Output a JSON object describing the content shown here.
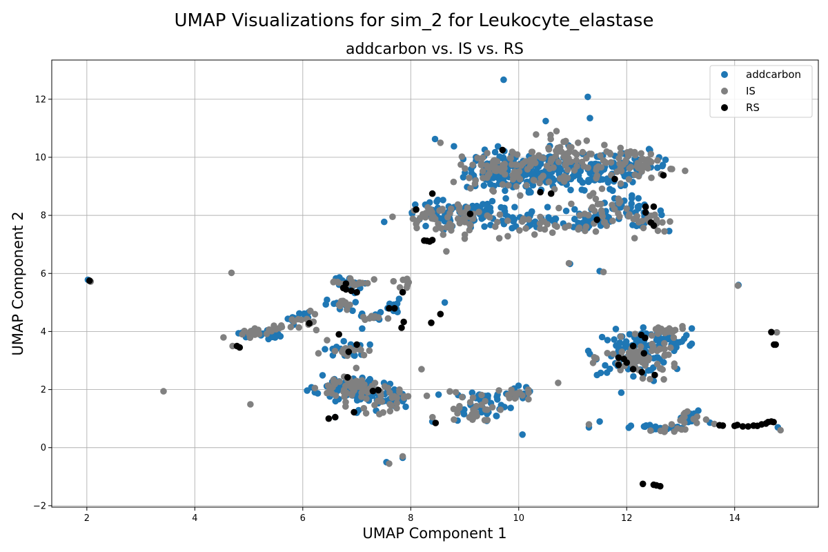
{
  "chart_data": {
    "type": "scatter",
    "suptitle": "UMAP Visualizations for sim_2 for Leukocyte_elastase",
    "title": "addcarbon vs. IS vs. RS",
    "xlabel": "UMAP Component 1",
    "ylabel": "UMAP Component 2",
    "xlim": [
      1.35,
      15.55
    ],
    "ylim": [
      -2.05,
      13.35
    ],
    "xticks": [
      2,
      4,
      6,
      8,
      10,
      12,
      14
    ],
    "yticks": [
      -2,
      0,
      2,
      4,
      6,
      8,
      10,
      12
    ],
    "grid": true,
    "legend_position": "top-right",
    "series": [
      {
        "name": "addcarbon",
        "color": "#1f77b4",
        "clusters": [
          {
            "c": [
              9.9,
              9.5
            ],
            "s": [
              0.45,
              0.35
            ],
            "n": 120
          },
          {
            "c": [
              10.6,
              9.6
            ],
            "s": [
              0.4,
              0.35
            ],
            "n": 90
          },
          {
            "c": [
              11.4,
              9.5
            ],
            "s": [
              0.3,
              0.3
            ],
            "n": 40
          },
          {
            "c": [
              12.1,
              9.7
            ],
            "s": [
              0.35,
              0.25
            ],
            "n": 45
          },
          {
            "c": [
              12.0,
              8.1
            ],
            "s": [
              0.35,
              0.25
            ],
            "n": 40
          },
          {
            "c": [
              11.3,
              7.9
            ],
            "s": [
              0.3,
              0.3
            ],
            "n": 35
          },
          {
            "c": [
              8.7,
              8.0
            ],
            "s": [
              0.45,
              0.25
            ],
            "n": 50
          },
          {
            "c": [
              9.4,
              8.0
            ],
            "s": [
              0.35,
              0.2
            ],
            "n": 35
          },
          {
            "c": [
              10.2,
              7.9
            ],
            "s": [
              0.3,
              0.2
            ],
            "n": 25
          },
          {
            "c": [
              12.1,
              3.3
            ],
            "s": [
              0.35,
              0.35
            ],
            "n": 90
          },
          {
            "c": [
              12.7,
              3.7
            ],
            "s": [
              0.25,
              0.2
            ],
            "n": 35
          },
          {
            "c": [
              7.1,
              2.0
            ],
            "s": [
              0.35,
              0.25
            ],
            "n": 60
          },
          {
            "c": [
              7.6,
              1.6
            ],
            "s": [
              0.2,
              0.2
            ],
            "n": 25
          },
          {
            "c": [
              6.7,
              2.2
            ],
            "s": [
              0.25,
              0.2
            ],
            "n": 25
          },
          {
            "c": [
              9.3,
              1.5
            ],
            "s": [
              0.3,
              0.3
            ],
            "n": 35
          },
          {
            "c": [
              9.9,
              1.9
            ],
            "s": [
              0.15,
              0.1
            ],
            "n": 15
          },
          {
            "c": [
              6.8,
              5.6
            ],
            "s": [
              0.15,
              0.15
            ],
            "n": 18
          },
          {
            "c": [
              6.7,
              4.9
            ],
            "s": [
              0.15,
              0.1
            ],
            "n": 10
          },
          {
            "c": [
              6.8,
              3.4
            ],
            "s": [
              0.2,
              0.15
            ],
            "n": 18
          },
          {
            "c": [
              5.2,
              3.9
            ],
            "s": [
              0.2,
              0.1
            ],
            "n": 15
          },
          {
            "c": [
              5.9,
              4.5
            ],
            "s": [
              0.15,
              0.12
            ],
            "n": 12
          },
          {
            "c": [
              7.3,
              4.5
            ],
            "s": [
              0.1,
              0.08
            ],
            "n": 8
          },
          {
            "c": [
              7.7,
              4.8
            ],
            "s": [
              0.1,
              0.15
            ],
            "n": 10
          },
          {
            "c": [
              12.6,
              0.68
            ],
            "s": [
              0.25,
              0.05
            ],
            "n": 20
          },
          {
            "c": [
              13.2,
              1.0
            ],
            "s": [
              0.15,
              0.15
            ],
            "n": 12
          }
        ],
        "points": [
          [
            2.02,
            5.78
          ],
          [
            9.72,
            12.67
          ],
          [
            11.28,
            12.08
          ],
          [
            11.32,
            11.35
          ],
          [
            10.5,
            11.25
          ],
          [
            8.45,
            10.63
          ],
          [
            8.8,
            10.38
          ],
          [
            12.6,
            10.0
          ],
          [
            10.95,
            6.33
          ],
          [
            11.5,
            6.08
          ],
          [
            14.07,
            5.6
          ],
          [
            8.63,
            5.0
          ],
          [
            10.07,
            0.45
          ],
          [
            7.55,
            -0.5
          ],
          [
            7.85,
            -0.35
          ],
          [
            11.3,
            0.7
          ],
          [
            14.8,
            0.7
          ],
          [
            11.5,
            0.9
          ],
          [
            6.6,
            1.05
          ],
          [
            8.4,
            0.9
          ],
          [
            7.1,
            4.1
          ],
          [
            5.6,
            4.15
          ],
          [
            7.0,
            1.2
          ],
          [
            11.45,
            2.5
          ],
          [
            12.5,
            2.3
          ]
        ]
      },
      {
        "name": "IS",
        "color": "#808080",
        "clusters": [
          {
            "c": [
              9.8,
              9.6
            ],
            "s": [
              0.45,
              0.35
            ],
            "n": 80
          },
          {
            "c": [
              10.8,
              10.0
            ],
            "s": [
              0.3,
              0.35
            ],
            "n": 50
          },
          {
            "c": [
              11.7,
              9.7
            ],
            "s": [
              0.3,
              0.3
            ],
            "n": 30
          },
          {
            "c": [
              12.3,
              9.8
            ],
            "s": [
              0.3,
              0.25
            ],
            "n": 40
          },
          {
            "c": [
              11.5,
              8.1
            ],
            "s": [
              0.3,
              0.3
            ],
            "n": 35
          },
          {
            "c": [
              12.4,
              7.8
            ],
            "s": [
              0.2,
              0.2
            ],
            "n": 20
          },
          {
            "c": [
              8.5,
              8.0
            ],
            "s": [
              0.35,
              0.2
            ],
            "n": 40
          },
          {
            "c": [
              9.2,
              7.7
            ],
            "s": [
              0.3,
              0.3
            ],
            "n": 25
          },
          {
            "c": [
              10.4,
              7.6
            ],
            "s": [
              0.3,
              0.25
            ],
            "n": 18
          },
          {
            "c": [
              12.3,
              3.1
            ],
            "s": [
              0.35,
              0.3
            ],
            "n": 70
          },
          {
            "c": [
              12.7,
              4.0
            ],
            "s": [
              0.2,
              0.1
            ],
            "n": 20
          },
          {
            "c": [
              6.9,
              2.1
            ],
            "s": [
              0.3,
              0.25
            ],
            "n": 50
          },
          {
            "c": [
              7.4,
              1.6
            ],
            "s": [
              0.25,
              0.2
            ],
            "n": 30
          },
          {
            "c": [
              9.2,
              1.4
            ],
            "s": [
              0.3,
              0.3
            ],
            "n": 30
          },
          {
            "c": [
              9.9,
              1.85
            ],
            "s": [
              0.15,
              0.1
            ],
            "n": 14
          },
          {
            "c": [
              6.9,
              5.7
            ],
            "s": [
              0.2,
              0.08
            ],
            "n": 18
          },
          {
            "c": [
              6.8,
              4.9
            ],
            "s": [
              0.15,
              0.1
            ],
            "n": 10
          },
          {
            "c": [
              6.8,
              3.4
            ],
            "s": [
              0.2,
              0.1
            ],
            "n": 15
          },
          {
            "c": [
              5.0,
              3.8
            ],
            "s": [
              0.2,
              0.2
            ],
            "n": 15
          },
          {
            "c": [
              5.5,
              4.15
            ],
            "s": [
              0.15,
              0.05
            ],
            "n": 8
          },
          {
            "c": [
              6.0,
              4.4
            ],
            "s": [
              0.2,
              0.15
            ],
            "n": 12
          },
          {
            "c": [
              7.3,
              4.5
            ],
            "s": [
              0.1,
              0.05
            ],
            "n": 8
          },
          {
            "c": [
              7.8,
              5.6
            ],
            "s": [
              0.1,
              0.1
            ],
            "n": 8
          },
          {
            "c": [
              13.1,
              0.9
            ],
            "s": [
              0.2,
              0.2
            ],
            "n": 15
          },
          {
            "c": [
              12.8,
              0.6
            ],
            "s": [
              0.15,
              0.05
            ],
            "n": 8
          }
        ],
        "points": [
          [
            2.07,
            5.72
          ],
          [
            4.68,
            6.02
          ],
          [
            3.42,
            1.94
          ],
          [
            5.03,
            1.49
          ],
          [
            8.2,
            2.7
          ],
          [
            8.66,
            6.76
          ],
          [
            10.73,
            2.23
          ],
          [
            14.85,
            0.6
          ],
          [
            14.78,
            3.97
          ],
          [
            11.57,
            6.05
          ],
          [
            14.06,
            5.58
          ],
          [
            10.93,
            6.35
          ],
          [
            8.55,
            10.5
          ],
          [
            9.2,
            9.2
          ],
          [
            10.7,
            10.9
          ],
          [
            11.1,
            10.5
          ],
          [
            12.7,
            7.45
          ],
          [
            8.1,
            7.7
          ],
          [
            6.25,
            4.05
          ],
          [
            6.45,
            3.7
          ],
          [
            7.6,
            -0.55
          ],
          [
            7.85,
            -0.3
          ],
          [
            4.7,
            3.5
          ],
          [
            9.0,
            7.2
          ],
          [
            11.3,
            0.8
          ]
        ]
      },
      {
        "name": "RS",
        "color": "#000000",
        "points": [
          [
            2.05,
            5.75
          ],
          [
            9.7,
            10.25
          ],
          [
            12.68,
            9.38
          ],
          [
            11.78,
            9.25
          ],
          [
            10.4,
            8.8
          ],
          [
            10.6,
            8.75
          ],
          [
            9.1,
            8.05
          ],
          [
            8.1,
            8.2
          ],
          [
            8.4,
            8.75
          ],
          [
            12.5,
            8.3
          ],
          [
            12.35,
            8.3
          ],
          [
            12.35,
            8.1
          ],
          [
            11.45,
            7.85
          ],
          [
            12.45,
            7.75
          ],
          [
            12.5,
            7.65
          ],
          [
            8.3,
            7.12
          ],
          [
            8.35,
            7.1
          ],
          [
            8.4,
            7.15
          ],
          [
            8.25,
            7.13
          ],
          [
            6.8,
            5.65
          ],
          [
            6.8,
            5.45
          ],
          [
            6.9,
            5.4
          ],
          [
            7.0,
            5.35
          ],
          [
            6.75,
            5.5
          ],
          [
            7.85,
            5.35
          ],
          [
            7.6,
            4.8
          ],
          [
            7.7,
            4.8
          ],
          [
            8.55,
            4.6
          ],
          [
            8.38,
            4.3
          ],
          [
            7.87,
            4.33
          ],
          [
            7.83,
            4.13
          ],
          [
            6.12,
            4.28
          ],
          [
            6.67,
            3.9
          ],
          [
            6.85,
            3.3
          ],
          [
            7.0,
            3.55
          ],
          [
            4.78,
            3.5
          ],
          [
            4.83,
            3.45
          ],
          [
            14.68,
            3.98
          ],
          [
            14.73,
            3.55
          ],
          [
            14.76,
            3.55
          ],
          [
            12.27,
            3.88
          ],
          [
            12.34,
            3.78
          ],
          [
            12.12,
            3.5
          ],
          [
            12.32,
            3.25
          ],
          [
            11.85,
            3.1
          ],
          [
            11.95,
            3.05
          ],
          [
            12.0,
            2.93
          ],
          [
            11.85,
            2.85
          ],
          [
            12.12,
            2.7
          ],
          [
            12.28,
            2.6
          ],
          [
            12.52,
            2.5
          ],
          [
            7.3,
            1.95
          ],
          [
            7.4,
            1.98
          ],
          [
            6.83,
            2.42
          ],
          [
            6.95,
            1.22
          ],
          [
            6.6,
            1.05
          ],
          [
            6.48,
            1.0
          ],
          [
            8.46,
            0.85
          ],
          [
            13.72,
            0.77
          ],
          [
            13.78,
            0.76
          ],
          [
            14.0,
            0.75
          ],
          [
            14.05,
            0.78
          ],
          [
            14.15,
            0.73
          ],
          [
            14.25,
            0.73
          ],
          [
            14.35,
            0.76
          ],
          [
            14.42,
            0.75
          ],
          [
            14.5,
            0.8
          ],
          [
            14.58,
            0.83
          ],
          [
            14.62,
            0.88
          ],
          [
            14.68,
            0.9
          ],
          [
            14.72,
            0.88
          ],
          [
            12.3,
            -1.25
          ],
          [
            12.5,
            -1.28
          ],
          [
            12.55,
            -1.3
          ],
          [
            12.62,
            -1.33
          ]
        ]
      }
    ]
  }
}
